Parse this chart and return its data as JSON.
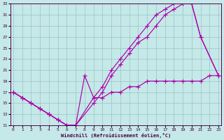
{
  "bg_color": "#c5e8e8",
  "grid_color": "#99c4c4",
  "line_color": "#aa00aa",
  "xlim": [
    0,
    23
  ],
  "ylim": [
    11,
    33
  ],
  "xticks": [
    0,
    1,
    2,
    3,
    4,
    5,
    6,
    7,
    8,
    9,
    10,
    11,
    12,
    13,
    14,
    15,
    16,
    17,
    18,
    19,
    20,
    21,
    22,
    23
  ],
  "yticks": [
    11,
    13,
    15,
    17,
    19,
    21,
    23,
    25,
    27,
    29,
    31,
    33
  ],
  "xlabel": "Windchill (Refroidissement éolien,°C)",
  "line1_x": [
    0,
    1,
    2,
    3,
    4,
    5,
    6,
    7,
    9,
    10,
    11,
    12,
    13,
    14,
    15,
    16,
    17,
    18,
    19,
    20,
    21,
    23
  ],
  "line1_y": [
    17,
    16,
    15,
    14,
    13,
    12,
    11,
    11,
    16,
    18,
    21,
    23,
    25,
    27,
    29,
    31,
    32,
    33,
    33,
    33,
    27,
    20
  ],
  "line2_x": [
    0,
    1,
    2,
    3,
    4,
    5,
    6,
    7,
    9,
    10,
    11,
    12,
    13,
    14,
    15,
    16,
    17,
    18,
    19,
    20,
    21,
    23
  ],
  "line2_y": [
    17,
    16,
    15,
    14,
    13,
    12,
    11,
    11,
    15,
    17,
    20,
    22,
    24,
    26,
    27,
    29,
    31,
    32,
    33,
    33,
    27,
    20
  ],
  "line3_x": [
    0,
    1,
    2,
    3,
    4,
    5,
    6,
    7,
    8,
    9,
    10,
    11,
    12,
    13,
    14,
    15,
    16,
    17,
    18,
    19,
    20,
    21,
    22,
    23
  ],
  "line3_y": [
    17,
    16,
    15,
    14,
    13,
    12,
    11,
    11,
    20,
    16,
    16,
    17,
    17,
    18,
    18,
    19,
    19,
    19,
    19,
    19,
    19,
    19,
    20,
    20
  ]
}
